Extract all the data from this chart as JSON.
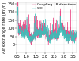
{
  "ylabel": "Air exchange rate (m³/h)",
  "xlim": [
    0.5,
    3.7
  ],
  "ylim": [
    -50,
    260
  ],
  "yticks": [
    0,
    50,
    100,
    150,
    200,
    250
  ],
  "xticks": [
    0.5,
    1.0,
    1.5,
    2.0,
    2.5,
    3.0,
    3.5
  ],
  "xtick_labels": [
    "0.5",
    "1.0",
    "1.5",
    "2.0",
    "2.5",
    "3.0",
    "3.5"
  ],
  "ytick_labels": [
    "0",
    "50",
    "100",
    "150",
    "200",
    "250"
  ],
  "legend_labels": [
    "Coupling - 8 directions",
    "SFE"
  ],
  "line_colors": [
    "#e8417f",
    "#3abfb8"
  ],
  "n_points": 800,
  "seed": 7,
  "background_color": "#ffffff",
  "grid_color": "#d0d0d0",
  "ylabel_fontsize": 3.8,
  "tick_fontsize": 3.5,
  "legend_fontsize": 3.2,
  "linewidth": 0.3
}
